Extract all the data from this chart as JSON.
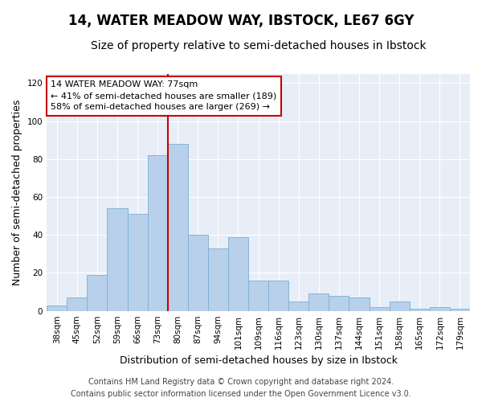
{
  "title": "14, WATER MEADOW WAY, IBSTOCK, LE67 6GY",
  "subtitle": "Size of property relative to semi-detached houses in Ibstock",
  "xlabel": "Distribution of semi-detached houses by size in Ibstock",
  "ylabel": "Number of semi-detached properties",
  "categories": [
    "38sqm",
    "45sqm",
    "52sqm",
    "59sqm",
    "66sqm",
    "73sqm",
    "80sqm",
    "87sqm",
    "94sqm",
    "101sqm",
    "109sqm",
    "116sqm",
    "123sqm",
    "130sqm",
    "137sqm",
    "144sqm",
    "151sqm",
    "158sqm",
    "165sqm",
    "172sqm",
    "179sqm"
  ],
  "values": [
    3,
    7,
    19,
    54,
    51,
    82,
    88,
    40,
    33,
    39,
    16,
    16,
    5,
    9,
    8,
    7,
    2,
    5,
    1,
    2,
    1
  ],
  "bar_color": "#b8d0ea",
  "bar_edge_color": "#7aafd4",
  "vline_x": 6.0,
  "vline_color": "#cc0000",
  "annotation_line1": "14 WATER MEADOW WAY: 77sqm",
  "annotation_line2": "← 41% of semi-detached houses are smaller (189)",
  "annotation_line3": "58% of semi-detached houses are larger (269) →",
  "annotation_box_color": "#ffffff",
  "annotation_box_edge": "#cc0000",
  "ylim": [
    0,
    125
  ],
  "yticks": [
    0,
    20,
    40,
    60,
    80,
    100,
    120
  ],
  "background_color": "#e8eef7",
  "footer_line1": "Contains HM Land Registry data © Crown copyright and database right 2024.",
  "footer_line2": "Contains public sector information licensed under the Open Government Licence v3.0.",
  "title_fontsize": 12,
  "subtitle_fontsize": 10,
  "axis_label_fontsize": 9,
  "tick_fontsize": 7.5,
  "annotation_fontsize": 8,
  "footer_fontsize": 7
}
